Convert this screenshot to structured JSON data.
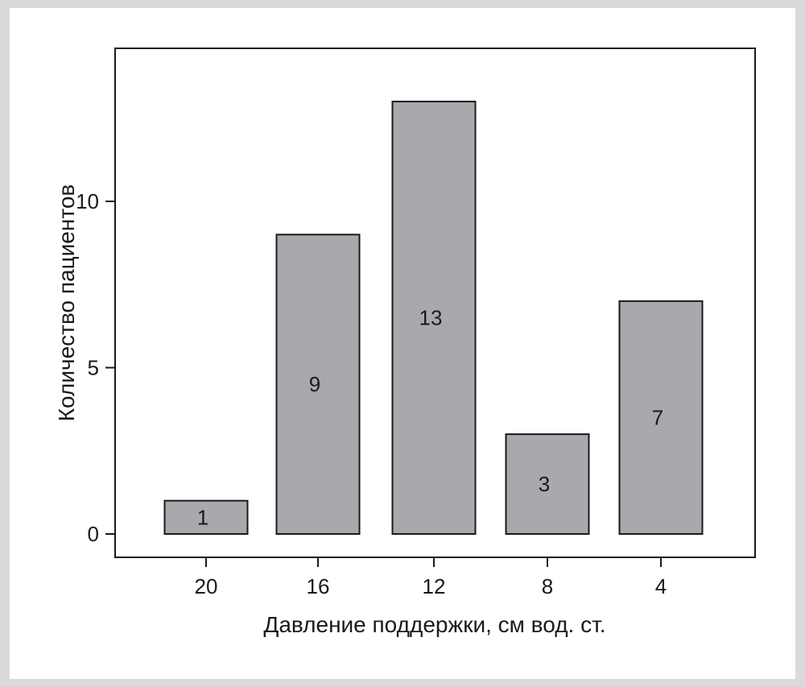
{
  "chart_data": {
    "type": "bar",
    "categories": [
      "20",
      "16",
      "12",
      "8",
      "4"
    ],
    "values": [
      1,
      9,
      13,
      3,
      7
    ],
    "data_labels": [
      "1",
      "9",
      "13",
      "3",
      "7"
    ],
    "title": "",
    "xlabel": "Давление поддержки, см вод. ст.",
    "ylabel": "Количество пациентов",
    "ylim": [
      0,
      14.6
    ],
    "yticks": [
      {
        "value": 0,
        "label": "0"
      },
      {
        "value": 5,
        "label": "5"
      },
      {
        "value": 10,
        "label": "10"
      }
    ],
    "grid": false,
    "legend": "none",
    "colors": {
      "bar_fill": "#a8a9ad",
      "bar_stroke": "#1a1a1a",
      "axis": "#1a1a1a",
      "background": "#d9dadb"
    }
  }
}
